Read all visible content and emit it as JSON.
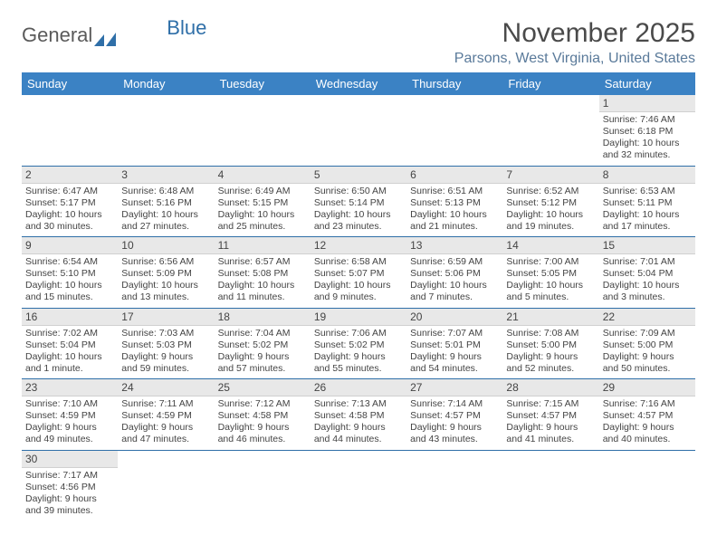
{
  "logo": {
    "text1": "General",
    "text2": "Blue"
  },
  "title": "November 2025",
  "location": "Parsons, West Virginia, United States",
  "colors": {
    "header_bg": "#3b82c4",
    "header_text": "#ffffff",
    "border": "#2f6fa8",
    "daynum_bg": "#e8e8e8",
    "logo_gray": "#5a5a5a",
    "logo_blue": "#2f6fa8",
    "location_color": "#5a7a9a"
  },
  "weekdays": [
    "Sunday",
    "Monday",
    "Tuesday",
    "Wednesday",
    "Thursday",
    "Friday",
    "Saturday"
  ],
  "weeks": [
    [
      null,
      null,
      null,
      null,
      null,
      null,
      {
        "n": "1",
        "sr": "7:46 AM",
        "ss": "6:18 PM",
        "dl": "10 hours and 32 minutes."
      }
    ],
    [
      {
        "n": "2",
        "sr": "6:47 AM",
        "ss": "5:17 PM",
        "dl": "10 hours and 30 minutes."
      },
      {
        "n": "3",
        "sr": "6:48 AM",
        "ss": "5:16 PM",
        "dl": "10 hours and 27 minutes."
      },
      {
        "n": "4",
        "sr": "6:49 AM",
        "ss": "5:15 PM",
        "dl": "10 hours and 25 minutes."
      },
      {
        "n": "5",
        "sr": "6:50 AM",
        "ss": "5:14 PM",
        "dl": "10 hours and 23 minutes."
      },
      {
        "n": "6",
        "sr": "6:51 AM",
        "ss": "5:13 PM",
        "dl": "10 hours and 21 minutes."
      },
      {
        "n": "7",
        "sr": "6:52 AM",
        "ss": "5:12 PM",
        "dl": "10 hours and 19 minutes."
      },
      {
        "n": "8",
        "sr": "6:53 AM",
        "ss": "5:11 PM",
        "dl": "10 hours and 17 minutes."
      }
    ],
    [
      {
        "n": "9",
        "sr": "6:54 AM",
        "ss": "5:10 PM",
        "dl": "10 hours and 15 minutes."
      },
      {
        "n": "10",
        "sr": "6:56 AM",
        "ss": "5:09 PM",
        "dl": "10 hours and 13 minutes."
      },
      {
        "n": "11",
        "sr": "6:57 AM",
        "ss": "5:08 PM",
        "dl": "10 hours and 11 minutes."
      },
      {
        "n": "12",
        "sr": "6:58 AM",
        "ss": "5:07 PM",
        "dl": "10 hours and 9 minutes."
      },
      {
        "n": "13",
        "sr": "6:59 AM",
        "ss": "5:06 PM",
        "dl": "10 hours and 7 minutes."
      },
      {
        "n": "14",
        "sr": "7:00 AM",
        "ss": "5:05 PM",
        "dl": "10 hours and 5 minutes."
      },
      {
        "n": "15",
        "sr": "7:01 AM",
        "ss": "5:04 PM",
        "dl": "10 hours and 3 minutes."
      }
    ],
    [
      {
        "n": "16",
        "sr": "7:02 AM",
        "ss": "5:04 PM",
        "dl": "10 hours and 1 minute."
      },
      {
        "n": "17",
        "sr": "7:03 AM",
        "ss": "5:03 PM",
        "dl": "9 hours and 59 minutes."
      },
      {
        "n": "18",
        "sr": "7:04 AM",
        "ss": "5:02 PM",
        "dl": "9 hours and 57 minutes."
      },
      {
        "n": "19",
        "sr": "7:06 AM",
        "ss": "5:02 PM",
        "dl": "9 hours and 55 minutes."
      },
      {
        "n": "20",
        "sr": "7:07 AM",
        "ss": "5:01 PM",
        "dl": "9 hours and 54 minutes."
      },
      {
        "n": "21",
        "sr": "7:08 AM",
        "ss": "5:00 PM",
        "dl": "9 hours and 52 minutes."
      },
      {
        "n": "22",
        "sr": "7:09 AM",
        "ss": "5:00 PM",
        "dl": "9 hours and 50 minutes."
      }
    ],
    [
      {
        "n": "23",
        "sr": "7:10 AM",
        "ss": "4:59 PM",
        "dl": "9 hours and 49 minutes."
      },
      {
        "n": "24",
        "sr": "7:11 AM",
        "ss": "4:59 PM",
        "dl": "9 hours and 47 minutes."
      },
      {
        "n": "25",
        "sr": "7:12 AM",
        "ss": "4:58 PM",
        "dl": "9 hours and 46 minutes."
      },
      {
        "n": "26",
        "sr": "7:13 AM",
        "ss": "4:58 PM",
        "dl": "9 hours and 44 minutes."
      },
      {
        "n": "27",
        "sr": "7:14 AM",
        "ss": "4:57 PM",
        "dl": "9 hours and 43 minutes."
      },
      {
        "n": "28",
        "sr": "7:15 AM",
        "ss": "4:57 PM",
        "dl": "9 hours and 41 minutes."
      },
      {
        "n": "29",
        "sr": "7:16 AM",
        "ss": "4:57 PM",
        "dl": "9 hours and 40 minutes."
      }
    ],
    [
      {
        "n": "30",
        "sr": "7:17 AM",
        "ss": "4:56 PM",
        "dl": "9 hours and 39 minutes."
      },
      null,
      null,
      null,
      null,
      null,
      null
    ]
  ],
  "labels": {
    "sunrise": "Sunrise:",
    "sunset": "Sunset:",
    "daylight": "Daylight:"
  }
}
